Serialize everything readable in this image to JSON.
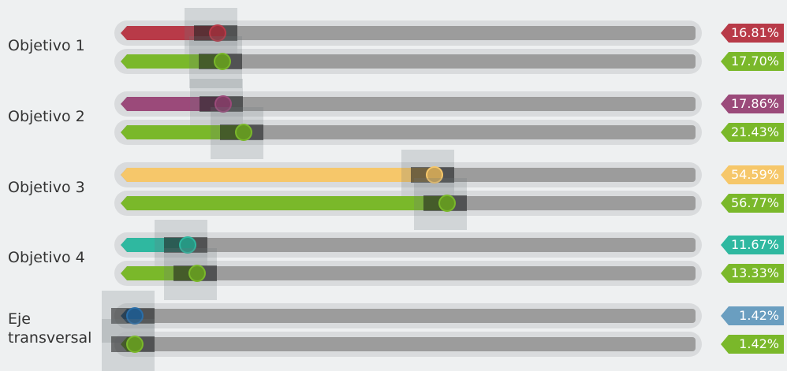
{
  "chart_data": {
    "type": "bar",
    "orientation": "horizontal",
    "categories": [
      "Objetivo 1",
      "Objetivo 2",
      "Objetivo 3",
      "Objetivo 4",
      "Eje transversal"
    ],
    "category_lines": [
      [
        "Objetivo 1"
      ],
      [
        "Objetivo 2"
      ],
      [
        "Objetivo 3"
      ],
      [
        "Objetivo 4"
      ],
      [
        "Eje",
        "transversal"
      ]
    ],
    "series": [
      {
        "values": [
          16.81,
          17.86,
          54.59,
          11.67,
          1.42
        ],
        "labels": [
          "16.81%",
          "17.86%",
          "54.59%",
          "11.67%",
          "1.42%"
        ],
        "colors": [
          "#b83a48",
          "#9b4a7a",
          "#f6c76a",
          "#2fb8a0",
          "#2a6ea8"
        ],
        "label_colors": [
          "#b83a48",
          "#9b4a7a",
          "#f6c76a",
          "#2fb8a0",
          "#6a9ec0"
        ]
      },
      {
        "values": [
          17.7,
          21.43,
          56.77,
          13.33,
          1.42
        ],
        "labels": [
          "17.70%",
          "21.43%",
          "56.77%",
          "13.33%",
          "1.42%"
        ],
        "colors": [
          "#7ab82a",
          "#7ab82a",
          "#7ab82a",
          "#7ab82a",
          "#7ab82a"
        ],
        "label_colors": [
          "#7ab82a",
          "#7ab82a",
          "#7ab82a",
          "#7ab82a",
          "#7ab82a"
        ]
      }
    ],
    "xlim": [
      0,
      100
    ],
    "grid": false
  }
}
